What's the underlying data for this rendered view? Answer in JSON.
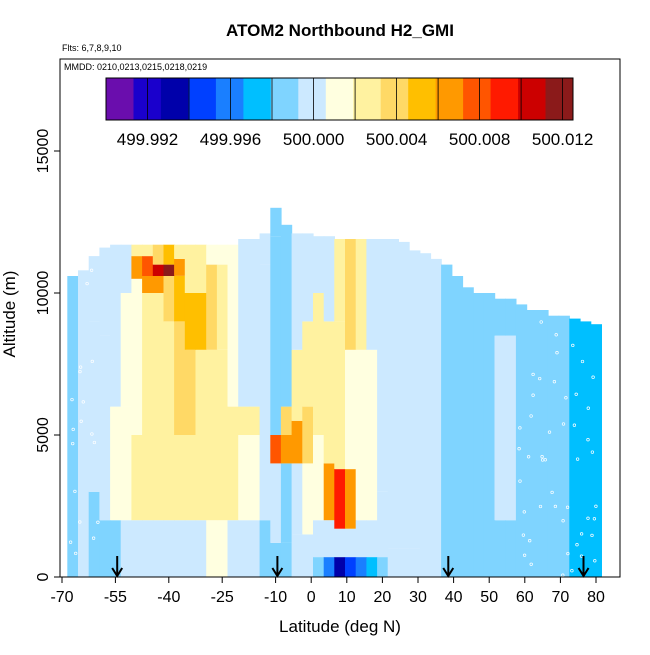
{
  "chart_data": {
    "type": "heatmap",
    "title": "ATOM2 Northbound H2_GMI",
    "flights_label": "Flts: 6,7,8,9,10",
    "dates_label": "MMDD: 0210,0213,0215,0218,0219",
    "xlabel": "Latitude (deg N)",
    "ylabel": "Altitude (m)",
    "xlim": [
      -70,
      85
    ],
    "ylim": [
      0,
      17500
    ],
    "x_ticks": [
      -70,
      -55,
      -40,
      -25,
      -10,
      0,
      10,
      20,
      30,
      40,
      50,
      60,
      70,
      80
    ],
    "x_tick_labels": [
      "-70",
      "-55",
      "-40",
      "-25",
      "-10",
      "0",
      "10",
      "20",
      "30",
      "40",
      "50",
      "60",
      "70",
      "80"
    ],
    "y_ticks": [
      0,
      5000,
      10000,
      15000
    ],
    "y_tick_labels": [
      "0",
      "5000",
      "10000",
      "15000"
    ],
    "colorbar": {
      "min": 499.99,
      "max": 500.0125,
      "ticks": [
        499.992,
        499.996,
        500.0,
        500.004,
        500.008,
        500.012
      ],
      "tick_labels": [
        "499.992",
        "499.996",
        "500.000",
        "500.004",
        "500.008",
        "500.012"
      ],
      "colors": [
        "#6a0dad",
        "#1a00cc",
        "#0000aa",
        "#0040ff",
        "#1a7fff",
        "#00bfff",
        "#7fd4ff",
        "#cce9ff",
        "#ffffe0",
        "#fff2a0",
        "#ffd966",
        "#ffbf00",
        "#ff9900",
        "#ff5500",
        "#ff1a00",
        "#cc0000",
        "#8b1a1a"
      ]
    },
    "arrows_lat": [
      -54.5,
      -9.5,
      38.5,
      76.5
    ],
    "columns": [
      {
        "lat": -67,
        "top": 10600,
        "levels": [
          [
            0,
            10600,
            499.999
          ]
        ]
      },
      {
        "lat": -64,
        "top": 11000,
        "levels": [
          [
            0,
            10800,
            499.9995
          ]
        ]
      },
      {
        "lat": -61,
        "top": 11300,
        "levels": [
          [
            0,
            3000,
            499.999
          ],
          [
            3000,
            9000,
            500.0
          ],
          [
            9000,
            11300,
            499.9995
          ]
        ]
      },
      {
        "lat": -58,
        "top": 11600,
        "levels": [
          [
            0,
            2000,
            499.999
          ],
          [
            2000,
            8500,
            500.0005
          ],
          [
            8500,
            11600,
            500.0
          ]
        ]
      },
      {
        "lat": -55,
        "top": 11700,
        "levels": [
          [
            0,
            2000,
            499.999
          ],
          [
            2000,
            6000,
            500.001
          ],
          [
            6000,
            10000,
            500.0005
          ],
          [
            10000,
            11700,
            500.0
          ]
        ]
      },
      {
        "lat": -52,
        "top": 11700,
        "levels": [
          [
            0,
            2000,
            499.9995
          ],
          [
            2000,
            6000,
            500.0015
          ],
          [
            6000,
            10000,
            500.001
          ],
          [
            10000,
            11700,
            500.0005
          ]
        ]
      },
      {
        "lat": -49,
        "top": 11700,
        "levels": [
          [
            0,
            2000,
            499.9995
          ],
          [
            2000,
            5000,
            500.002
          ],
          [
            5000,
            10500,
            500.0015
          ],
          [
            10500,
            11300,
            500.007
          ],
          [
            11300,
            11700,
            500.002
          ]
        ]
      },
      {
        "lat": -46,
        "top": 11700,
        "levels": [
          [
            0,
            2000,
            500.0
          ],
          [
            2000,
            5000,
            500.002
          ],
          [
            5000,
            10000,
            500.002
          ],
          [
            10000,
            10600,
            500.007
          ],
          [
            10600,
            11300,
            500.008
          ],
          [
            11300,
            11700,
            500.003
          ]
        ]
      },
      {
        "lat": -43,
        "top": 11700,
        "levels": [
          [
            0,
            2000,
            500.0
          ],
          [
            2000,
            5000,
            500.0025
          ],
          [
            5000,
            10000,
            500.002
          ],
          [
            10000,
            10600,
            500.0065
          ],
          [
            10600,
            11000,
            500.011
          ],
          [
            11000,
            11700,
            500.004
          ]
        ]
      },
      {
        "lat": -40,
        "top": 11700,
        "levels": [
          [
            0,
            2000,
            500.0
          ],
          [
            2000,
            5000,
            500.003
          ],
          [
            5000,
            9000,
            500.003
          ],
          [
            9000,
            10600,
            500.004
          ],
          [
            10600,
            11000,
            500.0125
          ],
          [
            11000,
            11700,
            500.005
          ]
        ]
      },
      {
        "lat": -37,
        "top": 11700,
        "levels": [
          [
            0,
            2000,
            500.0005
          ],
          [
            2000,
            5000,
            500.003
          ],
          [
            5000,
            9000,
            500.004
          ],
          [
            9000,
            10600,
            500.005
          ],
          [
            10600,
            11200,
            500.007
          ],
          [
            11200,
            11700,
            500.003
          ]
        ]
      },
      {
        "lat": -34,
        "top": 11700,
        "levels": [
          [
            0,
            2000,
            500.0005
          ],
          [
            2000,
            5000,
            500.002
          ],
          [
            5000,
            8000,
            500.004
          ],
          [
            8000,
            10000,
            500.005
          ],
          [
            10000,
            11700,
            500.002
          ]
        ]
      },
      {
        "lat": -31,
        "top": 11700,
        "levels": [
          [
            0,
            2000,
            500.0005
          ],
          [
            2000,
            5000,
            500.002
          ],
          [
            5000,
            8000,
            500.003
          ],
          [
            8000,
            10000,
            500.005
          ],
          [
            10000,
            11700,
            500.002
          ]
        ]
      },
      {
        "lat": -28,
        "top": 11700,
        "levels": [
          [
            0,
            2000,
            500.001
          ],
          [
            2000,
            5000,
            500.002
          ],
          [
            5000,
            8000,
            500.003
          ],
          [
            8000,
            11000,
            500.004
          ],
          [
            11000,
            11700,
            500.001
          ]
        ]
      },
      {
        "lat": -25,
        "top": 11700,
        "levels": [
          [
            0,
            2000,
            500.001
          ],
          [
            2000,
            5000,
            500.0025
          ],
          [
            5000,
            8000,
            500.003
          ],
          [
            8000,
            11000,
            500.003
          ],
          [
            11000,
            11700,
            500.001
          ]
        ]
      },
      {
        "lat": -22,
        "top": 11700,
        "levels": [
          [
            0,
            2000,
            500.0
          ],
          [
            2000,
            5000,
            500.002
          ],
          [
            5000,
            6000,
            500.0025
          ],
          [
            6000,
            11700,
            500.001
          ]
        ]
      },
      {
        "lat": -19,
        "top": 11900,
        "levels": [
          [
            0,
            2000,
            500.0
          ],
          [
            2000,
            5000,
            500.0015
          ],
          [
            5000,
            6000,
            500.003
          ],
          [
            6000,
            11900,
            500.0005
          ]
        ]
      },
      {
        "lat": -16,
        "top": 11900,
        "levels": [
          [
            0,
            2000,
            499.9995
          ],
          [
            2000,
            5000,
            500.001
          ],
          [
            5000,
            6000,
            500.002
          ],
          [
            6000,
            11900,
            500.0
          ]
        ]
      },
      {
        "lat": -13,
        "top": 12100,
        "levels": [
          [
            0,
            2000,
            499.999
          ],
          [
            2000,
            5000,
            500.0005
          ],
          [
            5000,
            11000,
            500.0
          ],
          [
            11000,
            12100,
            499.9995
          ]
        ]
      },
      {
        "lat": -10,
        "top": 13000,
        "levels": [
          [
            0,
            1200,
            499.9985
          ],
          [
            1200,
            4000,
            499.9995
          ],
          [
            4000,
            5000,
            500.008
          ],
          [
            5000,
            12000,
            499.999
          ],
          [
            12000,
            13000,
            499.9985
          ]
        ]
      },
      {
        "lat": -7,
        "top": 12400,
        "levels": [
          [
            0,
            1200,
            499.9985
          ],
          [
            1200,
            4000,
            499.999
          ],
          [
            4000,
            5000,
            500.007
          ],
          [
            5000,
            6000,
            500.004
          ],
          [
            6000,
            12400,
            499.999
          ]
        ]
      },
      {
        "lat": -4,
        "top": 12100,
        "levels": [
          [
            0,
            1500,
            499.9995
          ],
          [
            1500,
            4000,
            500.0005
          ],
          [
            4000,
            5500,
            500.006
          ],
          [
            5500,
            8000,
            500.003
          ],
          [
            8000,
            12100,
            500.0005
          ]
        ]
      },
      {
        "lat": -1,
        "top": 12100,
        "levels": [
          [
            0,
            1500,
            500.0
          ],
          [
            1500,
            4000,
            500.001
          ],
          [
            4000,
            6000,
            500.004
          ],
          [
            6000,
            9000,
            500.002
          ],
          [
            9000,
            12100,
            500.0
          ]
        ]
      },
      {
        "lat": 2,
        "top": 12000,
        "levels": [
          [
            0,
            700,
            499.9985
          ],
          [
            700,
            2000,
            499.9995
          ],
          [
            2000,
            5000,
            500.001
          ],
          [
            5000,
            10000,
            500.003
          ],
          [
            10000,
            12000,
            500.0005
          ]
        ]
      },
      {
        "lat": 5,
        "top": 12000,
        "levels": [
          [
            0,
            700,
            499.996
          ],
          [
            700,
            2000,
            499.9995
          ],
          [
            2000,
            4000,
            500.006
          ],
          [
            4000,
            9000,
            500.002
          ],
          [
            9000,
            12000,
            500.0005
          ]
        ]
      },
      {
        "lat": 8,
        "top": 11900,
        "levels": [
          [
            0,
            700,
            499.993
          ],
          [
            700,
            1700,
            499.9995
          ],
          [
            1700,
            3800,
            500.009
          ],
          [
            3800,
            9000,
            500.002
          ],
          [
            9000,
            11900,
            500.003
          ]
        ]
      },
      {
        "lat": 11,
        "top": 11900,
        "levels": [
          [
            0,
            700,
            499.994
          ],
          [
            700,
            1700,
            500.0
          ],
          [
            1700,
            3800,
            500.006
          ],
          [
            3800,
            8000,
            500.001
          ],
          [
            8000,
            11900,
            500.0035
          ]
        ]
      },
      {
        "lat": 14,
        "top": 11900,
        "levels": [
          [
            0,
            700,
            499.996
          ],
          [
            700,
            2000,
            500.0005
          ],
          [
            2000,
            5000,
            500.0015
          ],
          [
            5000,
            8000,
            500.001
          ],
          [
            8000,
            11900,
            500.002
          ]
        ]
      },
      {
        "lat": 17,
        "top": 11900,
        "levels": [
          [
            0,
            700,
            499.997
          ],
          [
            700,
            2000,
            500.0005
          ],
          [
            2000,
            8000,
            500.001
          ],
          [
            8000,
            11900,
            500.0005
          ]
        ]
      },
      {
        "lat": 20,
        "top": 11900,
        "levels": [
          [
            0,
            700,
            499.9985
          ],
          [
            700,
            3000,
            500.0005
          ],
          [
            3000,
            11900,
            500.0005
          ]
        ]
      },
      {
        "lat": 23,
        "top": 11900,
        "levels": [
          [
            0,
            1000,
            499.9995
          ],
          [
            1000,
            11900,
            500.0003
          ]
        ]
      },
      {
        "lat": 26,
        "top": 11800,
        "levels": [
          [
            0,
            1000,
            499.9995
          ],
          [
            1000,
            11800,
            500.0
          ]
        ]
      },
      {
        "lat": 29,
        "top": 11500,
        "levels": [
          [
            0,
            1000,
            499.9995
          ],
          [
            1000,
            11500,
            500.0
          ]
        ]
      },
      {
        "lat": 32,
        "top": 11400,
        "levels": [
          [
            0,
            11400,
            499.9995
          ]
        ]
      },
      {
        "lat": 35,
        "top": 11200,
        "levels": [
          [
            0,
            11200,
            499.9995
          ]
        ]
      },
      {
        "lat": 38,
        "top": 11000,
        "levels": [
          [
            0,
            11000,
            499.999
          ]
        ]
      },
      {
        "lat": 41,
        "top": 10600,
        "levels": [
          [
            0,
            10600,
            499.999
          ]
        ]
      },
      {
        "lat": 44,
        "top": 10200,
        "levels": [
          [
            0,
            10200,
            499.9985
          ]
        ]
      },
      {
        "lat": 47,
        "top": 10000,
        "levels": [
          [
            0,
            10000,
            499.9985
          ]
        ]
      },
      {
        "lat": 50,
        "top": 10000,
        "levels": [
          [
            0,
            10000,
            499.9985
          ]
        ]
      },
      {
        "lat": 53,
        "top": 9800,
        "levels": [
          [
            0,
            2000,
            499.9985
          ],
          [
            2000,
            8500,
            500.0005
          ],
          [
            8500,
            9800,
            499.999
          ]
        ]
      },
      {
        "lat": 56,
        "top": 9800,
        "levels": [
          [
            0,
            2000,
            499.9985
          ],
          [
            2000,
            8500,
            500.0005
          ],
          [
            8500,
            9800,
            499.999
          ]
        ]
      },
      {
        "lat": 59,
        "top": 9600,
        "levels": [
          [
            0,
            9600,
            499.999
          ]
        ]
      },
      {
        "lat": 62,
        "top": 9400,
        "levels": [
          [
            0,
            9400,
            499.9985
          ]
        ]
      },
      {
        "lat": 65,
        "top": 9400,
        "levels": [
          [
            0,
            9400,
            499.9985
          ]
        ]
      },
      {
        "lat": 68,
        "top": 9200,
        "levels": [
          [
            0,
            9200,
            499.998
          ]
        ]
      },
      {
        "lat": 71,
        "top": 9200,
        "levels": [
          [
            0,
            9200,
            499.998
          ]
        ]
      },
      {
        "lat": 74,
        "top": 9100,
        "levels": [
          [
            0,
            9100,
            499.9975
          ]
        ]
      },
      {
        "lat": 77,
        "top": 9000,
        "levels": [
          [
            0,
            9000,
            499.9975
          ]
        ]
      },
      {
        "lat": 80,
        "top": 8900,
        "levels": [
          [
            0,
            8900,
            499.9975
          ]
        ]
      }
    ]
  }
}
